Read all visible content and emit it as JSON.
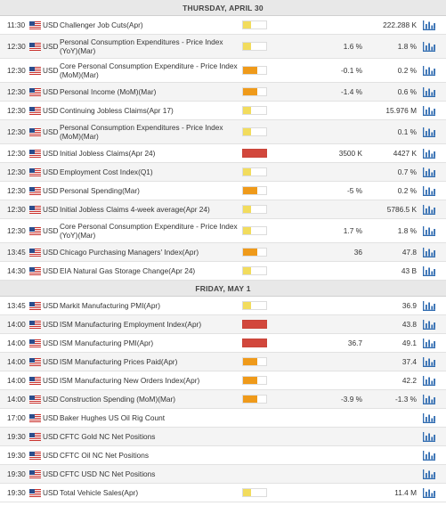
{
  "colors": {
    "low": "#f2dc5d",
    "medium": "#ef9a1a",
    "high": "#d2473c",
    "chart_icon": "#2f6bb0",
    "header_bg": "#e8e8e8"
  },
  "icons": {
    "flag": "us-flag-icon",
    "chart": "bar-chart-icon"
  },
  "days": [
    {
      "label": "THURSDAY, APRIL 30",
      "events": [
        {
          "time": "11:30",
          "currency": "USD",
          "name": "Challenger Job Cuts(Apr)",
          "impact": "low",
          "impact_level": 0.35,
          "actual": "",
          "forecast": "222.288 K"
        },
        {
          "time": "12:30",
          "currency": "USD",
          "name": "Personal Consumption Expenditures - Price Index (YoY)(Mar)",
          "impact": "low",
          "impact_level": 0.35,
          "actual": "1.6 %",
          "forecast": "1.8 %"
        },
        {
          "time": "12:30",
          "currency": "USD",
          "name": "Core Personal Consumption Expenditure - Price Index (MoM)(Mar)",
          "impact": "medium",
          "impact_level": 0.6,
          "actual": "-0.1 %",
          "forecast": "0.2 %"
        },
        {
          "time": "12:30",
          "currency": "USD",
          "name": "Personal Income (MoM)(Mar)",
          "impact": "medium",
          "impact_level": 0.6,
          "actual": "-1.4 %",
          "forecast": "0.6 %"
        },
        {
          "time": "12:30",
          "currency": "USD",
          "name": "Continuing Jobless Claims(Apr 17)",
          "impact": "low",
          "impact_level": 0.35,
          "actual": "",
          "forecast": "15.976 M"
        },
        {
          "time": "12:30",
          "currency": "USD",
          "name": "Personal Consumption Expenditures - Price Index (MoM)(Mar)",
          "impact": "low",
          "impact_level": 0.35,
          "actual": "",
          "forecast": "0.1 %"
        },
        {
          "time": "12:30",
          "currency": "USD",
          "name": "Initial Jobless Claims(Apr 24)",
          "impact": "high",
          "impact_level": 1,
          "actual": "3500 K",
          "forecast": "4427 K"
        },
        {
          "time": "12:30",
          "currency": "USD",
          "name": "Employment Cost Index(Q1)",
          "impact": "low",
          "impact_level": 0.35,
          "actual": "",
          "forecast": "0.7 %"
        },
        {
          "time": "12:30",
          "currency": "USD",
          "name": "Personal Spending(Mar)",
          "impact": "medium",
          "impact_level": 0.6,
          "actual": "-5 %",
          "forecast": "0.2 %"
        },
        {
          "time": "12:30",
          "currency": "USD",
          "name": "Initial Jobless Claims 4-week average(Apr 24)",
          "impact": "low",
          "impact_level": 0.35,
          "actual": "",
          "forecast": "5786.5 K"
        },
        {
          "time": "12:30",
          "currency": "USD",
          "name": "Core Personal Consumption Expenditure - Price Index (YoY)(Mar)",
          "impact": "low",
          "impact_level": 0.35,
          "actual": "1.7 %",
          "forecast": "1.8 %"
        },
        {
          "time": "13:45",
          "currency": "USD",
          "name": "Chicago Purchasing Managers' Index(Apr)",
          "impact": "medium",
          "impact_level": 0.6,
          "actual": "36",
          "forecast": "47.8"
        },
        {
          "time": "14:30",
          "currency": "USD",
          "name": "EIA Natural Gas Storage Change(Apr 24)",
          "impact": "low",
          "impact_level": 0.35,
          "actual": "",
          "forecast": "43 B"
        }
      ]
    },
    {
      "label": "FRIDAY, MAY 1",
      "events": [
        {
          "time": "13:45",
          "currency": "USD",
          "name": "Markit Manufacturing PMI(Apr)",
          "impact": "low",
          "impact_level": 0.35,
          "actual": "",
          "forecast": "36.9"
        },
        {
          "time": "14:00",
          "currency": "USD",
          "name": "ISM Manufacturing Employment Index(Apr)",
          "impact": "high",
          "impact_level": 1,
          "actual": "",
          "forecast": "43.8"
        },
        {
          "time": "14:00",
          "currency": "USD",
          "name": "ISM Manufacturing PMI(Apr)",
          "impact": "high",
          "impact_level": 1,
          "actual": "36.7",
          "forecast": "49.1"
        },
        {
          "time": "14:00",
          "currency": "USD",
          "name": "ISM Manufacturing Prices Paid(Apr)",
          "impact": "medium",
          "impact_level": 0.6,
          "actual": "",
          "forecast": "37.4"
        },
        {
          "time": "14:00",
          "currency": "USD",
          "name": "ISM Manufacturing New Orders Index(Apr)",
          "impact": "medium",
          "impact_level": 0.6,
          "actual": "",
          "forecast": "42.2"
        },
        {
          "time": "14:00",
          "currency": "USD",
          "name": "Construction Spending (MoM)(Mar)",
          "impact": "medium",
          "impact_level": 0.6,
          "actual": "-3.9 %",
          "forecast": "-1.3 %"
        },
        {
          "time": "17:00",
          "currency": "USD",
          "name": "Baker Hughes US Oil Rig Count",
          "impact": "none",
          "impact_level": 0,
          "actual": "",
          "forecast": ""
        },
        {
          "time": "19:30",
          "currency": "USD",
          "name": "CFTC Gold NC Net Positions",
          "impact": "none",
          "impact_level": 0,
          "actual": "",
          "forecast": ""
        },
        {
          "time": "19:30",
          "currency": "USD",
          "name": "CFTC Oil NC Net Positions",
          "impact": "none",
          "impact_level": 0,
          "actual": "",
          "forecast": ""
        },
        {
          "time": "19:30",
          "currency": "USD",
          "name": "CFTC USD NC Net Positions",
          "impact": "none",
          "impact_level": 0,
          "actual": "",
          "forecast": ""
        },
        {
          "time": "19:30",
          "currency": "USD",
          "name": "Total Vehicle Sales(Apr)",
          "impact": "low",
          "impact_level": 0.35,
          "actual": "",
          "forecast": "11.4 M"
        }
      ]
    }
  ]
}
